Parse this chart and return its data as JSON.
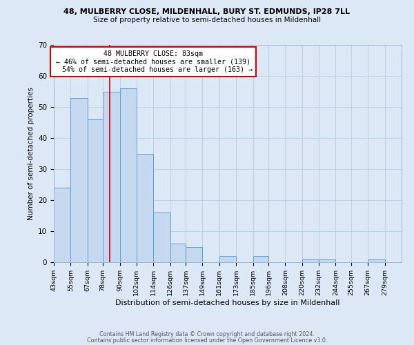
{
  "title1": "48, MULBERRY CLOSE, MILDENHALL, BURY ST. EDMUNDS, IP28 7LL",
  "title2": "Size of property relative to semi-detached houses in Mildenhall",
  "xlabel": "Distribution of semi-detached houses by size in Mildenhall",
  "ylabel": "Number of semi-detached properties",
  "property_label": "48 MULBERRY CLOSE: 83sqm",
  "pct_smaller": 46,
  "count_smaller": 139,
  "pct_larger": 54,
  "count_larger": 163,
  "bin_labels": [
    "43sqm",
    "55sqm",
    "67sqm",
    "78sqm",
    "90sqm",
    "102sqm",
    "114sqm",
    "126sqm",
    "137sqm",
    "149sqm",
    "161sqm",
    "173sqm",
    "185sqm",
    "196sqm",
    "208sqm",
    "220sqm",
    "232sqm",
    "244sqm",
    "255sqm",
    "267sqm",
    "279sqm"
  ],
  "bin_edges": [
    43,
    55,
    67,
    78,
    90,
    102,
    114,
    126,
    137,
    149,
    161,
    173,
    185,
    196,
    208,
    220,
    232,
    244,
    255,
    267,
    279,
    291
  ],
  "bar_values": [
    24,
    53,
    46,
    55,
    56,
    35,
    16,
    6,
    5,
    0,
    2,
    0,
    2,
    0,
    0,
    1,
    1,
    0,
    0,
    1,
    0
  ],
  "bar_color": "#c5d8f0",
  "bar_edge_color": "#5a9fd4",
  "vline_x": 83,
  "vline_color": "#cc0000",
  "box_facecolor": "#ffffff",
  "box_edgecolor": "#cc0000",
  "ylim": [
    0,
    70
  ],
  "yticks": [
    0,
    10,
    20,
    30,
    40,
    50,
    60,
    70
  ],
  "footer1": "Contains HM Land Registry data © Crown copyright and database right 2024.",
  "footer2": "Contains public sector information licensed under the Open Government Licence v3.0.",
  "bg_color": "#dce8f5",
  "plot_bg_color": "#dce8f5"
}
